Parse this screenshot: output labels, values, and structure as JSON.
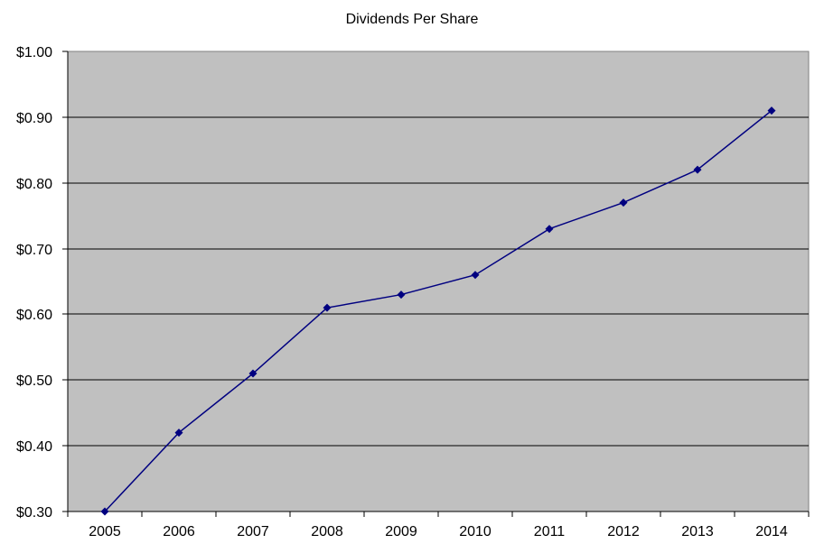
{
  "chart_data": {
    "type": "line",
    "title": "Dividends Per Share",
    "categories": [
      "2005",
      "2006",
      "2007",
      "2008",
      "2009",
      "2010",
      "2011",
      "2012",
      "2013",
      "2014"
    ],
    "series": [
      {
        "name": "Dividends Per Share",
        "values": [
          0.3,
          0.42,
          0.51,
          0.61,
          0.63,
          0.66,
          0.73,
          0.77,
          0.82,
          0.91
        ]
      }
    ],
    "y_ticks": [
      {
        "label": "$1.00",
        "value": 1.0
      },
      {
        "label": "$0.90",
        "value": 0.9
      },
      {
        "label": "$0.80",
        "value": 0.8
      },
      {
        "label": "$0.70",
        "value": 0.7
      },
      {
        "label": "$0.60",
        "value": 0.6
      },
      {
        "label": "$0.50",
        "value": 0.5
      },
      {
        "label": "$0.40",
        "value": 0.4
      },
      {
        "label": "$0.30",
        "value": 0.3
      }
    ],
    "ylim": [
      0.3,
      1.0
    ],
    "xlabel": "",
    "ylabel": "",
    "grid": "horizontal",
    "legend": "none",
    "marker": "diamond",
    "colors": {
      "line": "#000080",
      "marker": "#000080",
      "plot_background": "#C0C0C0",
      "plot_border": "#808080",
      "gridline": "#000000",
      "axis": "#000000",
      "text": "#000000",
      "page_background": "#FFFFFF"
    }
  }
}
